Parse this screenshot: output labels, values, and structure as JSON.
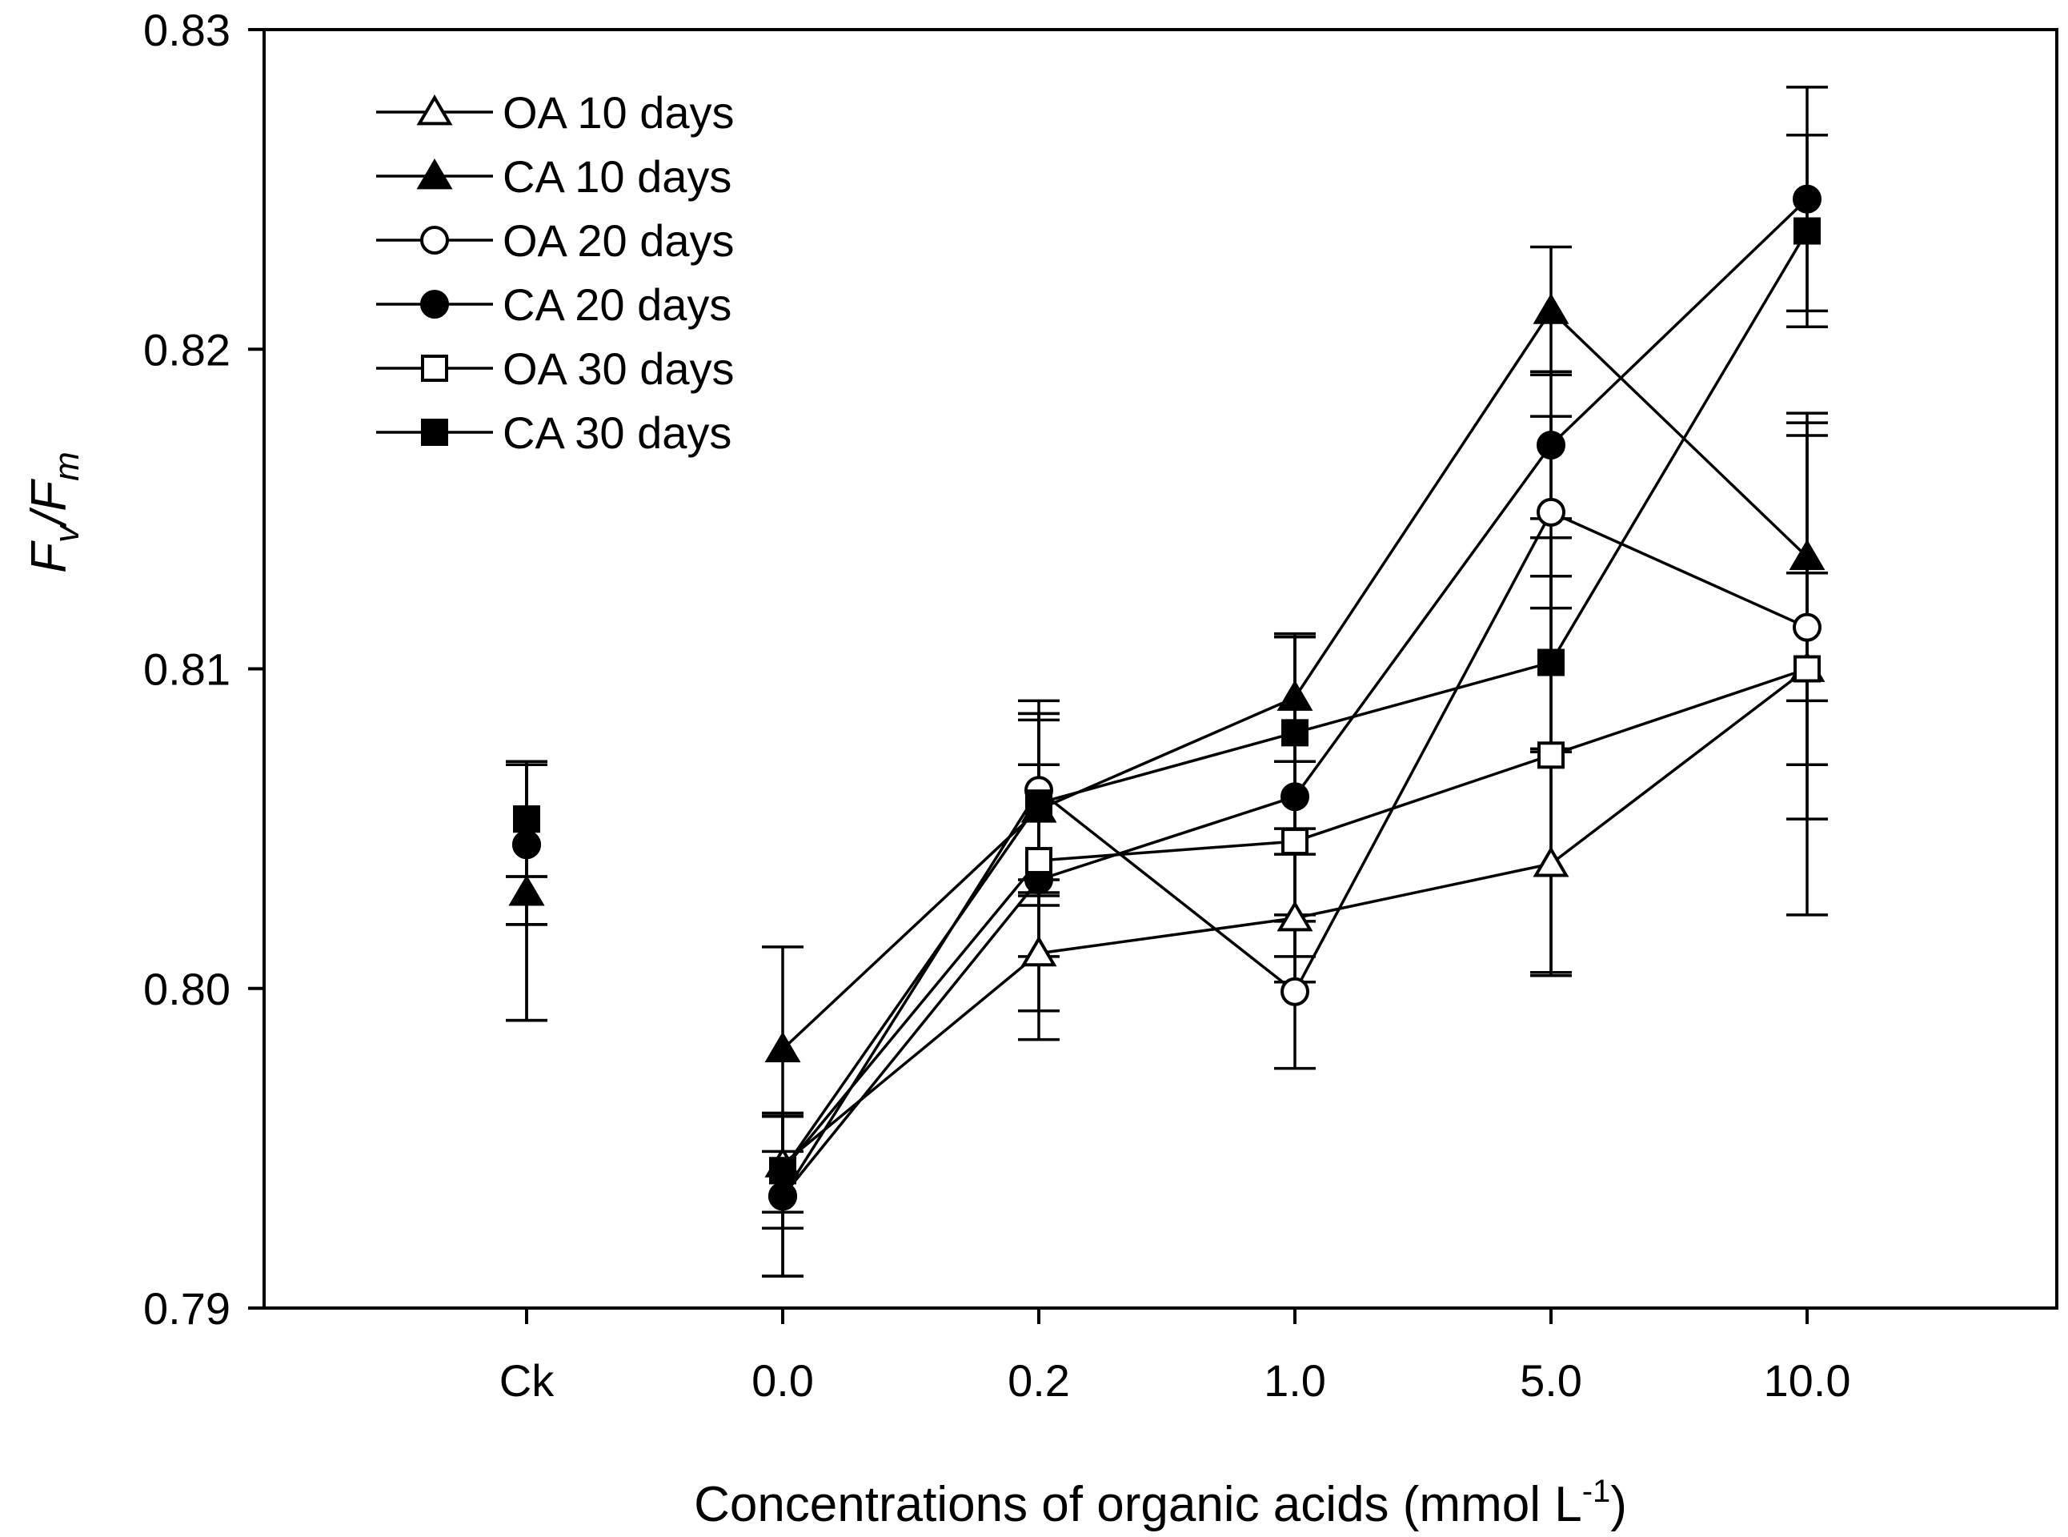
{
  "chart_data": {
    "type": "line",
    "title": "",
    "xlabel": "Concentrations of organic acids (mmol L",
    "xlabel_sup": "-1",
    "xlabel_close": ")",
    "ylabel": {
      "main1": "F",
      "sub1": "v",
      "slash": "/",
      "main2": "F",
      "sub2": "m"
    },
    "ylim": [
      0.79,
      0.83
    ],
    "yticks": [
      "0.79",
      "0.80",
      "0.81",
      "0.82",
      "0.83"
    ],
    "yticks_values": [
      0.79,
      0.8,
      0.81,
      0.82,
      0.83
    ],
    "categories": [
      "Ck",
      "0.0",
      "0.2",
      "1.0",
      "5.0",
      "10.0"
    ],
    "legend_position": "top-left",
    "series": [
      {
        "name": "OA 10 days",
        "marker": "triangle",
        "filled": false,
        "values": [
          0.803,
          0.7945,
          0.8011,
          0.8022,
          0.8039,
          0.81
        ],
        "errors": [
          0.004,
          0.0015,
          0.0018,
          0.002,
          0.0035,
          0.003
        ]
      },
      {
        "name": "CA 10 days",
        "marker": "triangle",
        "filled": true,
        "values": [
          0.803,
          0.7981,
          0.8056,
          0.8091,
          0.8212,
          0.8135
        ],
        "errors": [
          0.004,
          0.0032,
          0.003,
          0.002,
          0.002,
          0.0045
        ]
      },
      {
        "name": "OA 20 days",
        "marker": "circle",
        "filled": false,
        "values": [
          0.8045,
          0.7935,
          0.8062,
          0.7999,
          0.8149,
          0.8113
        ],
        "errors": [
          0.0025,
          0.0025,
          0.0028,
          0.0024,
          0.003,
          0.006
        ]
      },
      {
        "name": "CA 20 days",
        "marker": "circle",
        "filled": true,
        "values": [
          0.8045,
          0.7935,
          0.8034,
          0.806,
          0.817,
          0.8247
        ],
        "errors": [
          0.0025,
          0.0025,
          0.005,
          0.005,
          0.0023,
          0.0035
        ]
      },
      {
        "name": "OA 30 days",
        "marker": "square",
        "filled": false,
        "values": [
          0.8053,
          0.7943,
          0.804,
          0.8046,
          0.8073,
          0.81
        ],
        "errors": [
          0.0018,
          0.0018,
          0.003,
          0.0025,
          0.0068,
          0.0077
        ]
      },
      {
        "name": "CA 30 days",
        "marker": "square",
        "filled": true,
        "values": [
          0.8053,
          0.7943,
          0.8058,
          0.808,
          0.8102,
          0.8237
        ],
        "errors": [
          0.0018,
          0.0018,
          0.0028,
          0.003,
          0.0027,
          0.003
        ]
      }
    ],
    "ck_connected": false
  }
}
